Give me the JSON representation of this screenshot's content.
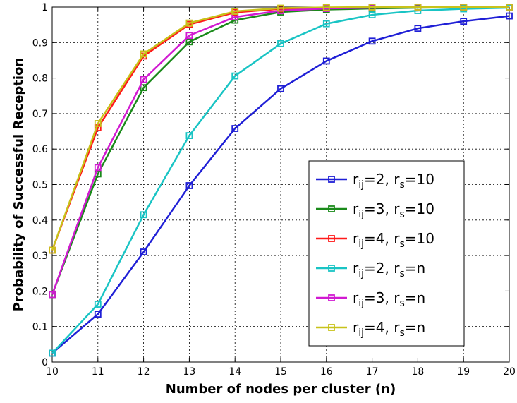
{
  "chart_data": {
    "type": "line",
    "title": "",
    "xlabel": "Number of nodes per cluster (n)",
    "ylabel": "Probability of Successful Reception",
    "xlim": [
      10,
      20
    ],
    "ylim": [
      0,
      1
    ],
    "grid": true,
    "legend_position": "bottom-right",
    "x": [
      10,
      11,
      12,
      13,
      14,
      15,
      16,
      17,
      18,
      19,
      20
    ],
    "xticks": [
      "10",
      "11",
      "12",
      "13",
      "14",
      "15",
      "16",
      "17",
      "18",
      "19",
      "20"
    ],
    "yticks": [
      "0",
      "0.1",
      "0.2",
      "0.3",
      "0.4",
      "0.5",
      "0.6",
      "0.7",
      "0.8",
      "0.9",
      "1"
    ],
    "series": [
      {
        "name": "r_ij=2, r_s=10",
        "label_parts": [
          "r",
          "ij",
          "=2, r",
          "s",
          "=10"
        ],
        "color": "#1f1fd6",
        "values": [
          0.025,
          0.135,
          0.31,
          0.497,
          0.658,
          0.77,
          0.848,
          0.904,
          0.94,
          0.96,
          0.975
        ]
      },
      {
        "name": "r_ij=3, r_s=10",
        "label_parts": [
          "r",
          "ij",
          "=3, r",
          "s",
          "=10"
        ],
        "color": "#1a8a1a",
        "values": [
          0.19,
          0.53,
          0.773,
          0.902,
          0.963,
          0.986,
          0.993,
          0.996,
          0.998,
          0.999,
          0.999
        ]
      },
      {
        "name": "r_ij=4, r_s=10",
        "label_parts": [
          "r",
          "ij",
          "=4, r",
          "s",
          "=10"
        ],
        "color": "#ff1a1a",
        "values": [
          0.315,
          0.66,
          0.862,
          0.951,
          0.985,
          0.995,
          0.998,
          0.999,
          1.0,
          1.0,
          1.0
        ]
      },
      {
        "name": "r_ij=2, r_s=n",
        "label_parts": [
          "r",
          "ij",
          "=2, r",
          "s",
          "=n"
        ],
        "color": "#19c4c4",
        "values": [
          0.025,
          0.163,
          0.415,
          0.638,
          0.806,
          0.897,
          0.953,
          0.978,
          0.99,
          0.995,
          0.998
        ]
      },
      {
        "name": "r_ij=3, r_s=n",
        "label_parts": [
          "r",
          "ij",
          "=3, r",
          "s",
          "=n"
        ],
        "color": "#d11ad1",
        "values": [
          0.19,
          0.548,
          0.796,
          0.92,
          0.972,
          0.99,
          0.996,
          0.998,
          0.999,
          1.0,
          1.0
        ]
      },
      {
        "name": "r_ij=4, r_s=n",
        "label_parts": [
          "r",
          "ij",
          "=4, r",
          "s",
          "=n"
        ],
        "color": "#c8c21a",
        "values": [
          0.315,
          0.672,
          0.868,
          0.955,
          0.988,
          0.997,
          0.999,
          1.0,
          1.0,
          1.0,
          1.0
        ]
      }
    ]
  }
}
